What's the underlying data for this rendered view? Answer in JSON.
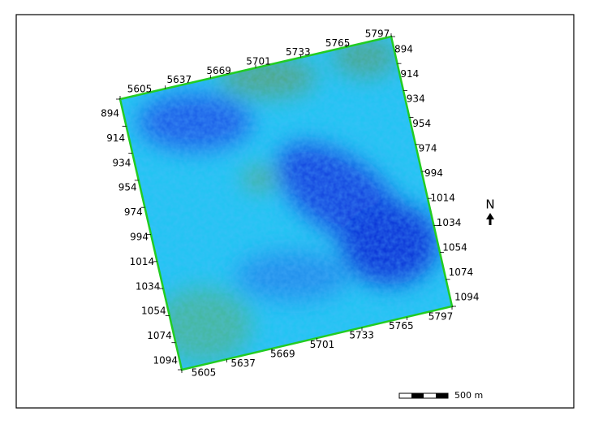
{
  "map": {
    "columns": [
      5605,
      5637,
      5669,
      5701,
      5733,
      5765,
      5797
    ],
    "rows": [
      894,
      914,
      934,
      954,
      974,
      994,
      1014,
      1034,
      1054,
      1074,
      1094
    ],
    "north": "N",
    "scale_bar": "500 m"
  }
}
